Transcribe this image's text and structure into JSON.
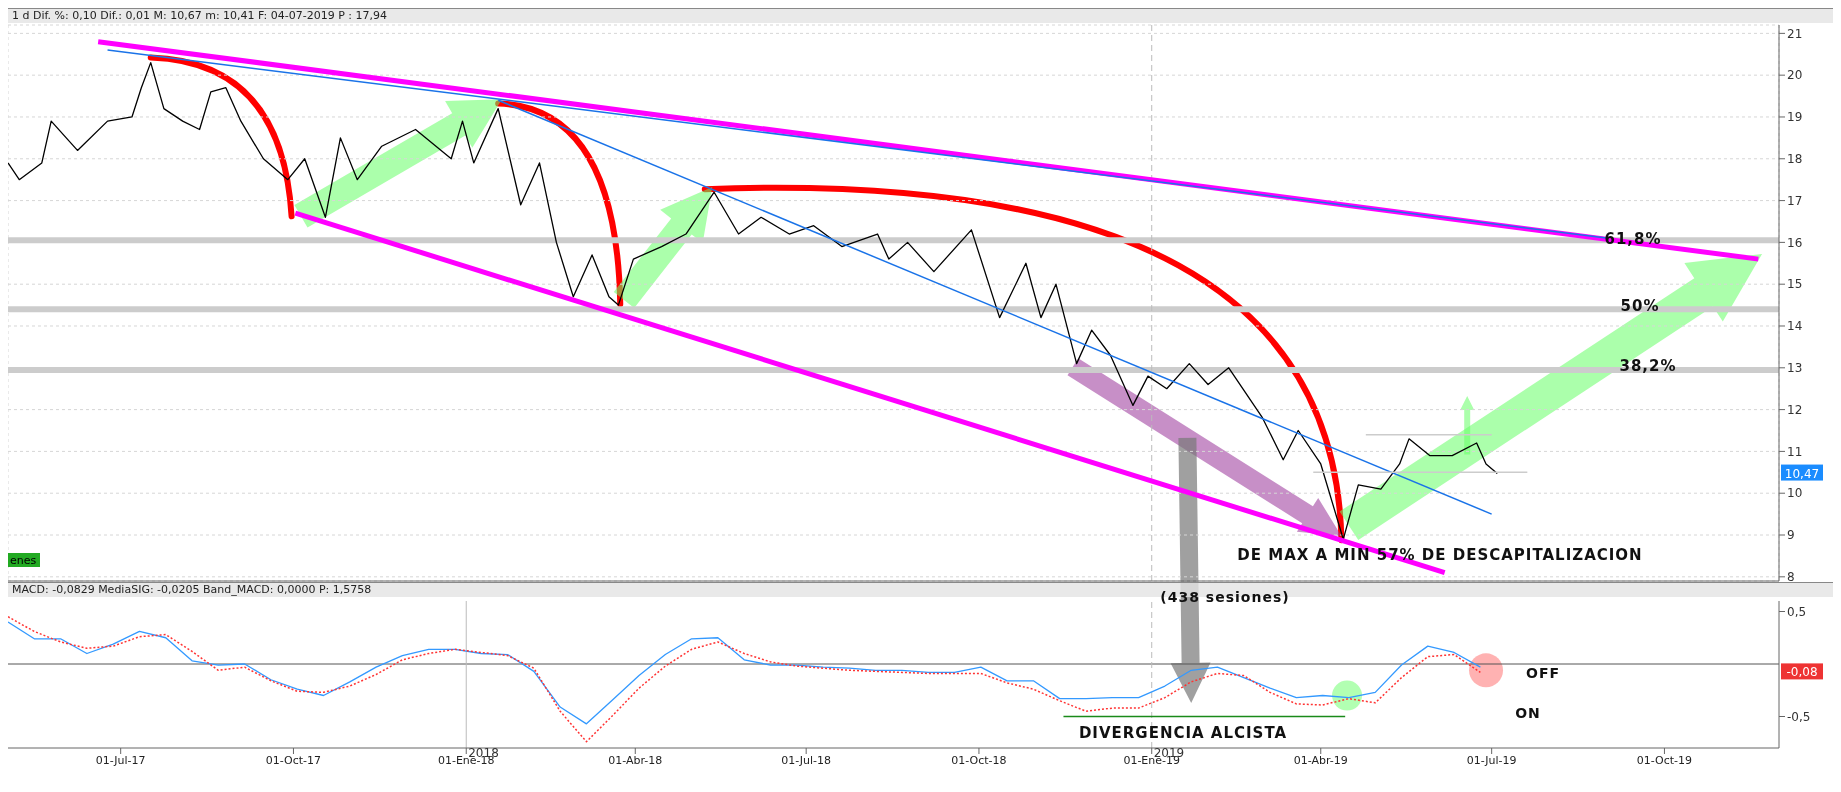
{
  "chart_data": [
    {
      "type": "line",
      "title": "1 d Dif. %: 0,10 Dif.: 0,01 M: 10,67 m: 10,41 F: 04-07-2019 P : 17,94",
      "xlim": [
        "2017-05-02",
        "2019-12-01"
      ],
      "xticks": [
        "2017-07-01",
        "2017-10-01",
        "2018-01-01",
        "2018-04-01",
        "2018-07-01",
        "2018-10-01",
        "2019-01-01",
        "2019-04-01",
        "2019-07-01",
        "2019-10-01"
      ],
      "ylim": [
        7.9,
        21.2
      ],
      "yticks": [
        8,
        9,
        10,
        11,
        12,
        13,
        14,
        15,
        16,
        17,
        18,
        19,
        20,
        21
      ],
      "grid": true,
      "tick_labels": "y",
      "series": [
        {
          "color": "#000000",
          "x": [
            "2017-05-02",
            "2017-05-08",
            "2017-05-20",
            "2017-05-25",
            "2017-06-08",
            "2017-06-24",
            "2017-07-07",
            "2017-07-12",
            "2017-07-17",
            "2017-07-24",
            "2017-08-03",
            "2017-08-12",
            "2017-08-18",
            "2017-08-26",
            "2017-09-03",
            "2017-09-15",
            "2017-09-28",
            "2017-10-07",
            "2017-10-18",
            "2017-10-26",
            "2017-11-04",
            "2017-11-17",
            "2017-12-05",
            "2017-12-24",
            "2017-12-30",
            "2018-01-05",
            "2018-01-18",
            "2018-01-30",
            "2018-02-09",
            "2018-02-18",
            "2018-02-27",
            "2018-03-09",
            "2018-03-18",
            "2018-03-23",
            "2018-03-31",
            "2018-04-15",
            "2018-04-28",
            "2018-05-13",
            "2018-05-26",
            "2018-06-07",
            "2018-06-22",
            "2018-07-05",
            "2018-07-20",
            "2018-08-08",
            "2018-08-14",
            "2018-08-24",
            "2018-09-07",
            "2018-09-27",
            "2018-10-12",
            "2018-10-26",
            "2018-11-03",
            "2018-11-11",
            "2018-11-22",
            "2018-11-30",
            "2018-12-10",
            "2018-12-22",
            "2018-12-30",
            "2019-01-09",
            "2019-01-21",
            "2019-01-31",
            "2019-02-11",
            "2019-03-01",
            "2019-03-12",
            "2019-03-20",
            "2019-04-01",
            "2019-04-13",
            "2019-04-21",
            "2019-05-03",
            "2019-05-13",
            "2019-05-18",
            "2019-05-29",
            "2019-06-10",
            "2019-06-23",
            "2019-06-28",
            "2019-07-04"
          ],
          "values": [
            17.9,
            17.5,
            17.9,
            18.9,
            18.2,
            18.9,
            19.0,
            19.7,
            20.3,
            19.2,
            18.9,
            18.7,
            19.6,
            19.7,
            18.9,
            18.0,
            17.5,
            18.0,
            16.6,
            18.5,
            17.5,
            18.3,
            18.7,
            18.0,
            18.9,
            17.9,
            19.2,
            16.9,
            17.9,
            16.0,
            14.7,
            15.7,
            14.7,
            14.5,
            15.6,
            15.9,
            16.2,
            17.2,
            16.2,
            16.6,
            16.2,
            16.4,
            15.9,
            16.2,
            15.6,
            16.0,
            15.3,
            16.3,
            14.2,
            15.5,
            14.2,
            15.0,
            13.1,
            13.9,
            13.3,
            12.1,
            12.8,
            12.5,
            13.1,
            12.6,
            13.0,
            11.8,
            10.8,
            11.5,
            10.7,
            8.9,
            10.2,
            10.1,
            10.7,
            11.3,
            10.9,
            10.9,
            11.2,
            10.7,
            10.47
          ]
        },
        {
          "color": "#ff00ff",
          "x": [
            "2017-06-19",
            "2019-11-20"
          ],
          "values": [
            20.8,
            15.6
          ]
        },
        {
          "color": "#ff00ff",
          "x": [
            "2017-10-02",
            "2019-06-06"
          ],
          "values": [
            16.7,
            8.1
          ]
        },
        {
          "color": "#1a73e8",
          "x": [
            "2017-06-24",
            "2019-09-01"
          ],
          "values": [
            20.6,
            16.1
          ]
        },
        {
          "color": "#1a73e8",
          "x": [
            "2018-01-18",
            "2019-07-01"
          ],
          "values": [
            19.4,
            9.5
          ]
        },
        {
          "color": "#cccccc",
          "x": [
            "2019-04-25",
            "2019-07-01"
          ],
          "values": [
            11.4,
            11.4
          ]
        },
        {
          "color": "#cccccc",
          "x": [
            "2019-03-28",
            "2019-07-20"
          ],
          "values": [
            10.5,
            10.5
          ]
        }
      ],
      "ref_lines": [
        {
          "axis": "y",
          "value": 16.05,
          "color": "#cccccc"
        },
        {
          "axis": "y",
          "value": 14.4,
          "color": "#cccccc"
        },
        {
          "axis": "y",
          "value": 12.95,
          "color": "#cccccc"
        },
        {
          "axis": "x",
          "value": "2019-01-01",
          "color": "#bbbbbb",
          "line_style": "dashed"
        }
      ],
      "annotations": [
        "DE MAX A MIN 57% DE DESCAPITALIZACION",
        "enes",
        "10,47",
        "61,8%",
        "50%",
        "38,2%"
      ]
    },
    {
      "type": "line",
      "title": "MACD: -0,0829 MediaSIG: -0,0205 Band_MACD: 0,0000 P: 1,5758",
      "xlim": [
        "2017-05-02",
        "2019-12-01"
      ],
      "xticks": [
        {
          "value": "2017-07-01",
          "label": "01-Jul-17"
        },
        {
          "value": "2017-10-01",
          "label": "01-Oct-17"
        },
        {
          "value": "2018-01-01",
          "label": "01-Ene-18"
        },
        {
          "value": "2018-04-01",
          "label": "01-Abr-18"
        },
        {
          "value": "2018-07-01",
          "label": "01-Jul-18"
        },
        {
          "value": "2018-10-01",
          "label": "01-Oct-18"
        },
        {
          "value": "2019-01-01",
          "label": "01-Ene-19"
        },
        {
          "value": "2019-04-01",
          "label": "01-Abr-19"
        },
        {
          "value": "2019-07-01",
          "label": "01-Jul-19"
        },
        {
          "value": "2019-10-01",
          "label": "01-Oct-19"
        }
      ],
      "ylim": [
        -0.8,
        0.6
      ],
      "yticks": [
        {
          "value": -0.5,
          "label": "-0,5"
        },
        {
          "value": 0.5,
          "label": "0,5"
        }
      ],
      "x": [
        "2017-05-02",
        "2017-05-16",
        "2017-05-30",
        "2017-06-13",
        "2017-06-27",
        "2017-07-11",
        "2017-07-25",
        "2017-08-08",
        "2017-08-22",
        "2017-09-05",
        "2017-09-19",
        "2017-10-03",
        "2017-10-17",
        "2017-10-31",
        "2017-11-14",
        "2017-11-28",
        "2017-12-12",
        "2017-12-26",
        "2018-01-09",
        "2018-01-23",
        "2018-02-06",
        "2018-02-20",
        "2018-03-06",
        "2018-03-20",
        "2018-04-03",
        "2018-04-17",
        "2018-05-01",
        "2018-05-15",
        "2018-05-29",
        "2018-06-12",
        "2018-06-26",
        "2018-07-10",
        "2018-07-24",
        "2018-08-07",
        "2018-08-21",
        "2018-09-04",
        "2018-09-18",
        "2018-10-02",
        "2018-10-16",
        "2018-10-30",
        "2018-11-13",
        "2018-11-27",
        "2018-12-11",
        "2018-12-25",
        "2019-01-08",
        "2019-01-22",
        "2019-02-05",
        "2019-02-19",
        "2019-03-05",
        "2019-03-19",
        "2019-04-02",
        "2019-04-16",
        "2019-04-30",
        "2019-05-14",
        "2019-05-28",
        "2019-06-11",
        "2019-06-25"
      ],
      "series": [
        {
          "color": "#3399ff",
          "values": [
            0.4,
            0.24,
            0.24,
            0.1,
            0.19,
            0.31,
            0.25,
            0.03,
            -0.01,
            0.0,
            -0.15,
            -0.24,
            -0.3,
            -0.17,
            -0.03,
            0.08,
            0.14,
            0.14,
            0.1,
            0.09,
            -0.07,
            -0.41,
            -0.57,
            -0.34,
            -0.11,
            0.09,
            0.24,
            0.25,
            0.04,
            -0.01,
            -0.01,
            -0.03,
            -0.04,
            -0.06,
            -0.06,
            -0.08,
            -0.08,
            -0.03,
            -0.16,
            -0.16,
            -0.33,
            -0.33,
            -0.32,
            -0.32,
            -0.21,
            -0.06,
            -0.03,
            -0.13,
            -0.23,
            -0.32,
            -0.3,
            -0.32,
            -0.27,
            -0.01,
            0.17,
            0.11,
            -0.03
          ]
        },
        {
          "color": "#ff3333",
          "line_style": "dotted",
          "values": [
            0.45,
            0.31,
            0.21,
            0.15,
            0.17,
            0.26,
            0.28,
            0.12,
            -0.06,
            -0.03,
            -0.16,
            -0.26,
            -0.27,
            -0.21,
            -0.1,
            0.04,
            0.1,
            0.14,
            0.11,
            0.08,
            -0.04,
            -0.45,
            -0.74,
            -0.49,
            -0.23,
            -0.02,
            0.14,
            0.21,
            0.1,
            0.02,
            -0.02,
            -0.04,
            -0.06,
            -0.07,
            -0.08,
            -0.09,
            -0.09,
            -0.09,
            -0.18,
            -0.24,
            -0.35,
            -0.45,
            -0.42,
            -0.42,
            -0.32,
            -0.17,
            -0.09,
            -0.11,
            -0.27,
            -0.38,
            -0.39,
            -0.33,
            -0.37,
            -0.13,
            0.07,
            0.09,
            -0.08
          ]
        },
        {
          "color": "#1a8a1a",
          "x": [
            "2018-11-15",
            "2019-04-14"
          ],
          "values": [
            -0.5,
            -0.5
          ]
        }
      ],
      "ref_lines": [
        {
          "axis": "y",
          "value": 0,
          "color": "#555555"
        },
        {
          "axis": "x",
          "value": "2018-01-01",
          "label": "2018",
          "color": "#bbbbbb"
        },
        {
          "axis": "x",
          "value": "2019-01-01",
          "label": "2019",
          "color": "#bbbbbb",
          "line_style": "dashed"
        }
      ],
      "annotations": [
        "(438 sesiones)",
        "DIVERGENCIA ALCISTA",
        "ON",
        "OFF",
        "-0,08"
      ]
    }
  ]
}
